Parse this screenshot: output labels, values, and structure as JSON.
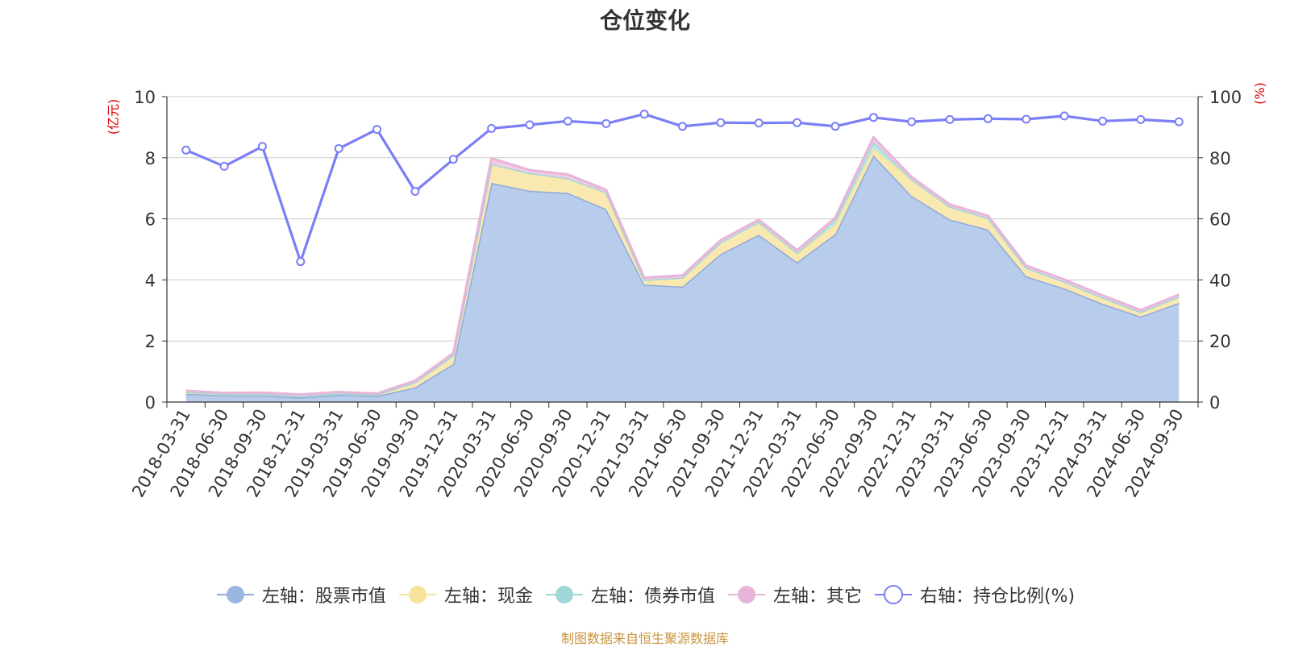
{
  "title": "仓位变化",
  "source_note": "制图数据来自恒生聚源数据库",
  "chart_data": {
    "type": "area",
    "categories": [
      "2018-03-31",
      "2018-06-30",
      "2018-09-30",
      "2018-12-31",
      "2019-03-31",
      "2019-06-30",
      "2019-09-30",
      "2019-12-31",
      "2020-03-31",
      "2020-06-30",
      "2020-09-30",
      "2020-12-31",
      "2021-03-31",
      "2021-06-30",
      "2021-09-30",
      "2021-12-31",
      "2022-03-31",
      "2022-06-30",
      "2022-09-30",
      "2022-12-31",
      "2023-03-31",
      "2023-06-30",
      "2023-09-30",
      "2023-12-31",
      "2024-03-31",
      "2024-06-30",
      "2024-09-30"
    ],
    "left_axis": {
      "unit_label": "(亿元)",
      "ylim": [
        0,
        10
      ],
      "ticks": [
        "0",
        "2",
        "4",
        "6",
        "8",
        "10"
      ]
    },
    "right_axis": {
      "unit_label": "(%)",
      "ylim": [
        0,
        100
      ],
      "ticks": [
        "0",
        "20",
        "40",
        "60",
        "80",
        "100"
      ]
    },
    "grid": true,
    "legend_position": "bottom",
    "stacked_series": [
      {
        "name": "左轴：股票市值",
        "axis": "left",
        "color": "#8faadc",
        "fill": "#b8cceb",
        "values": [
          0.27,
          0.22,
          0.22,
          0.15,
          0.24,
          0.2,
          0.48,
          1.25,
          7.18,
          6.92,
          6.85,
          6.32,
          3.85,
          3.78,
          4.85,
          5.48,
          4.58,
          5.5,
          8.08,
          6.75,
          5.98,
          5.65,
          4.12,
          3.72,
          3.22,
          2.8,
          3.25
        ]
      },
      {
        "name": "左轴：现金",
        "axis": "left",
        "color": "#f7e49c",
        "fill": "#f9e8b0",
        "values": [
          0.06,
          0.05,
          0.05,
          0.05,
          0.05,
          0.05,
          0.17,
          0.28,
          0.62,
          0.58,
          0.48,
          0.55,
          0.15,
          0.3,
          0.38,
          0.42,
          0.28,
          0.32,
          0.22,
          0.55,
          0.42,
          0.38,
          0.28,
          0.22,
          0.2,
          0.15,
          0.2
        ]
      },
      {
        "name": "左轴：债券市值",
        "axis": "left",
        "color": "#9fd7d9",
        "fill": "#bde6e7",
        "values": [
          0,
          0,
          0,
          0,
          0,
          0,
          0,
          0,
          0,
          0,
          0,
          0,
          0,
          0,
          0,
          0,
          0.03,
          0.14,
          0.22,
          0,
          0,
          0,
          0,
          0,
          0,
          0,
          0
        ]
      },
      {
        "name": "左轴：其它",
        "axis": "left",
        "color": "#e8b4d9",
        "fill": "#f0cde6",
        "values": [
          0.04,
          0.03,
          0.04,
          0.05,
          0.04,
          0.03,
          0.05,
          0.07,
          0.18,
          0.1,
          0.12,
          0.08,
          0.07,
          0.07,
          0.07,
          0.07,
          0.08,
          0.08,
          0.15,
          0.07,
          0.07,
          0.07,
          0.07,
          0.07,
          0.07,
          0.06,
          0.07
        ]
      }
    ],
    "line_series": [
      {
        "name": "右轴：持仓比例(%)",
        "axis": "right",
        "color": "#7b7ff5",
        "values": [
          82.5,
          77.2,
          83.7,
          46.0,
          83.0,
          89.3,
          69.0,
          79.5,
          89.6,
          90.8,
          92.0,
          91.2,
          94.3,
          90.3,
          91.5,
          91.4,
          91.5,
          90.3,
          93.2,
          91.8,
          92.5,
          92.8,
          92.6,
          93.7,
          92.0,
          92.5,
          91.8
        ]
      }
    ]
  }
}
